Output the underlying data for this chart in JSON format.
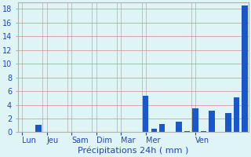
{
  "title": "",
  "xlabel": "Précipitations 24h ( mm )",
  "ylabel": "",
  "background_color": "#dff4f4",
  "bar_color": "#1a56cc",
  "ylim": [
    0,
    19
  ],
  "yticks": [
    0,
    2,
    4,
    6,
    8,
    10,
    12,
    14,
    16,
    18
  ],
  "grid_color": "#b0b0b0",
  "grid_color_red": "#dd8888",
  "day_labels": [
    "Lun",
    "Jeu",
    "Sam",
    "Dim",
    "Mar",
    "Mer",
    "Ven"
  ],
  "day_tick_positions": [
    0,
    3,
    6,
    9,
    12,
    15,
    21
  ],
  "values": [
    0.0,
    0.0,
    1.1,
    0.0,
    0.0,
    0.0,
    0.0,
    0.0,
    0.0,
    0.0,
    0.0,
    0.0,
    0.0,
    0.0,
    0.0,
    5.3,
    0.5,
    1.2,
    0.0,
    1.5,
    0.15,
    3.5,
    0.15,
    3.1,
    0.0,
    2.8,
    5.1,
    18.5
  ],
  "bar_width": 0.7,
  "text_color": "#2244bb",
  "tick_color": "#2244bb",
  "xlabel_fontsize": 8,
  "ytick_fontsize": 7,
  "xtick_fontsize": 7
}
